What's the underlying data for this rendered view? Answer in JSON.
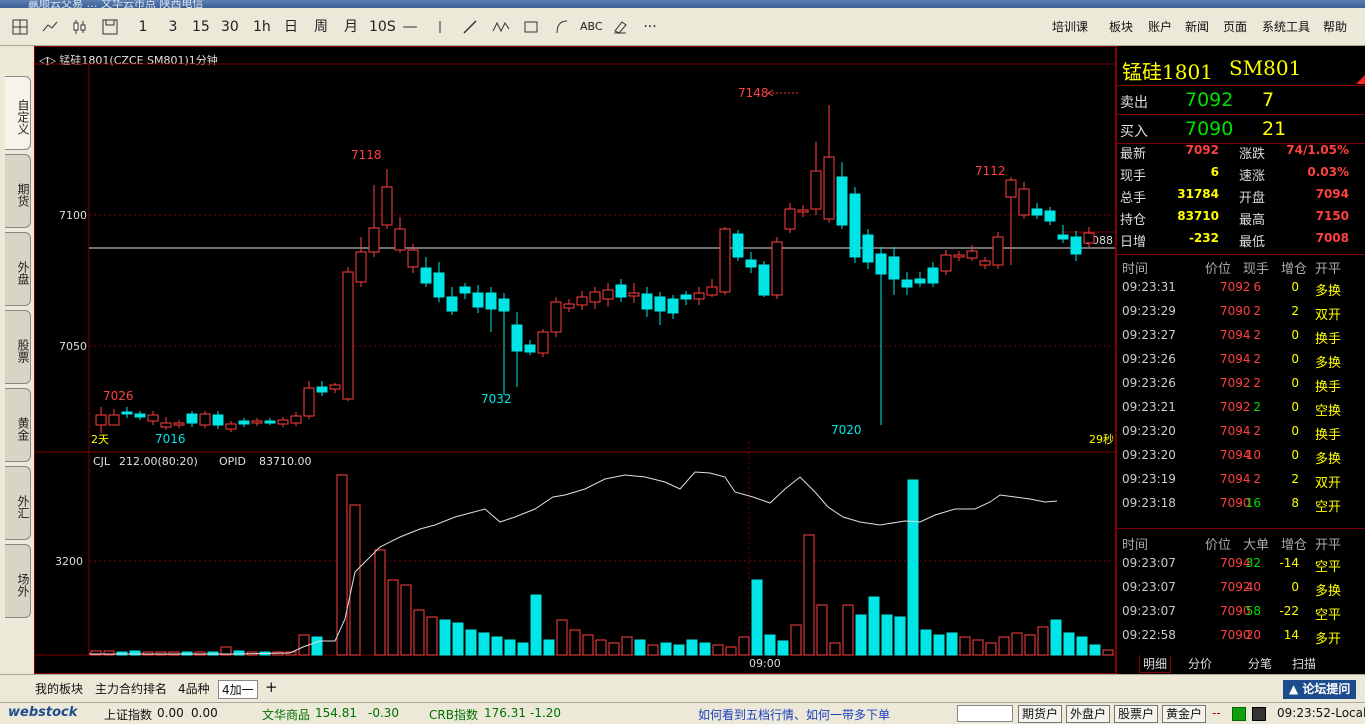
{
  "window": {
    "title_fragment": "赢顺云交易  …  文华云市点  陕西电信"
  },
  "toolbar": {
    "periods": [
      "1",
      "3",
      "15",
      "30",
      "1h",
      "日",
      "周",
      "月",
      "10S"
    ],
    "abc_label": "ABC",
    "more": "···",
    "menus": [
      "培训课",
      "板块",
      "账户",
      "新闻",
      "页面",
      "系统工具",
      "帮助"
    ]
  },
  "left_tabs": [
    "自定义",
    "期货",
    "外盘",
    "股票",
    "黄金",
    "外汇",
    "场外"
  ],
  "chart": {
    "header": "锰硅1801(CZCE SM801)1分钟",
    "y_ticks": [
      "7100",
      "7050"
    ],
    "current_price": "7088",
    "annotations": {
      "high": "7148",
      "h2": "7118",
      "h3": "7112",
      "low1": "7032",
      "low2": "7020",
      "low3": "7016",
      "l4": "7026"
    },
    "span_label": "2天",
    "countdown": "29秒",
    "time_label": "09:00",
    "vol_header": {
      "cjl": "CJL",
      "cjl_val": "212.00(80:20)",
      "opid": "OPID",
      "opid_val": "83710.00"
    },
    "vol_tick": "3200"
  },
  "chart_data": {
    "type": "candlestick",
    "title": "锰硅1801(CZCE SM801)1分钟",
    "price_axis": {
      "ticks": [
        7100,
        7050
      ]
    },
    "last_price": 7088,
    "marked": {
      "high": 7148,
      "low": 7020
    }
  },
  "quote": {
    "name": "锰硅1801",
    "code": "SM801",
    "ask": {
      "label": "卖出",
      "price": "7092",
      "qty": "7"
    },
    "bid": {
      "label": "买入",
      "price": "7090",
      "qty": "21"
    },
    "stats": [
      {
        "l1": "最新",
        "v1": "7092",
        "l2": "涨跌",
        "v2": "74/1.05%"
      },
      {
        "l1": "现手",
        "v1": "6",
        "l2": "速涨",
        "v2": "0.03%"
      },
      {
        "l1": "总手",
        "v1": "31784",
        "l2": "开盘",
        "v2": "7094"
      },
      {
        "l1": "持仓",
        "v1": "83710",
        "l2": "最高",
        "v2": "7150"
      },
      {
        "l1": "日增",
        "v1": "-232",
        "l2": "最低",
        "v2": "7008"
      }
    ],
    "ticks_header": [
      "时间",
      "价位",
      "现手",
      "增仓",
      "开平"
    ],
    "ticks": [
      {
        "t": "09:23:31",
        "p": "7092",
        "v": "6",
        "d": "0",
        "k": "多换"
      },
      {
        "t": "09:23:29",
        "p": "7090",
        "v": "2",
        "d": "2",
        "k": "双开"
      },
      {
        "t": "09:23:27",
        "p": "7094",
        "v": "2",
        "d": "0",
        "k": "换手"
      },
      {
        "t": "09:23:26",
        "p": "7094",
        "v": "2",
        "d": "0",
        "k": "多换"
      },
      {
        "t": "09:23:26",
        "p": "7092",
        "v": "2",
        "d": "0",
        "k": "换手"
      },
      {
        "t": "09:23:21",
        "p": "7092",
        "v": "2",
        "d": "0",
        "k": "空换"
      },
      {
        "t": "09:23:20",
        "p": "7094",
        "v": "2",
        "d": "0",
        "k": "换手"
      },
      {
        "t": "09:23:20",
        "p": "7094",
        "v": "10",
        "d": "0",
        "k": "多换"
      },
      {
        "t": "09:23:19",
        "p": "7094",
        "v": "2",
        "d": "2",
        "k": "双开"
      },
      {
        "t": "09:23:18",
        "p": "7090",
        "v": "16",
        "d": "8",
        "k": "空开"
      }
    ],
    "big_header": [
      "时间",
      "价位",
      "大单",
      "增仓",
      "开平"
    ],
    "big": [
      {
        "t": "09:23:07",
        "p": "7094",
        "v": "32",
        "d": "-14",
        "k": "空平"
      },
      {
        "t": "09:23:07",
        "p": "7092",
        "v": "40",
        "d": "0",
        "k": "多换"
      },
      {
        "t": "09:23:07",
        "p": "7090",
        "v": "58",
        "d": "-22",
        "k": "空平"
      },
      {
        "t": "09:22:58",
        "p": "7090",
        "v": "20",
        "d": "14",
        "k": "多开"
      }
    ],
    "tabs": [
      "明细",
      "分价",
      "分笔",
      "扫描"
    ]
  },
  "bottom_tabs": [
    "我的板块",
    "主力合约排名",
    "4品种",
    "4加一"
  ],
  "forum": "论坛提问",
  "status": {
    "brand": "webstock",
    "idx": [
      {
        "name": "上证指数",
        "val": "0.00",
        "chg": "0.00"
      },
      {
        "name": "文华商品",
        "val": "154.81",
        "chg": "-0.30"
      },
      {
        "name": "CRB指数",
        "val": "176.31",
        "chg": "-1.20"
      }
    ],
    "marquee": "如何看到五档行情、如何一带多下单",
    "buttons": [
      "期货户",
      "外盘户",
      "股票户",
      "黄金户"
    ],
    "dash": "--",
    "clock": "09:23:52-Local"
  },
  "colors": {
    "up": "#ff4040",
    "down": "#00e6e6",
    "grid": "#800000",
    "yellow": "#ffff00",
    "green": "#00e000"
  }
}
